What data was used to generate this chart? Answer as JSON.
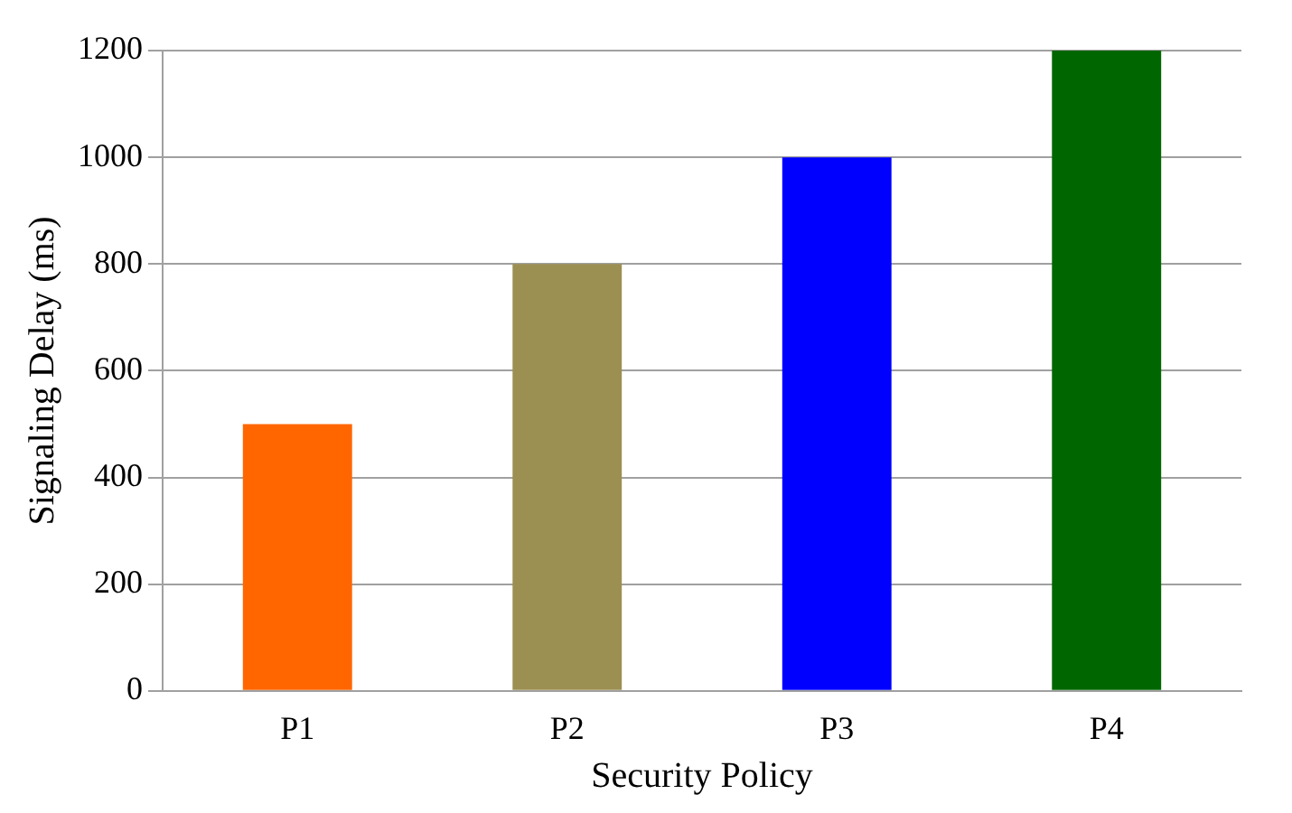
{
  "chart_data": {
    "type": "bar",
    "xlabel": "Security Policy",
    "ylabel": "Signaling Delay (ms)",
    "categories": [
      "P1",
      "P2",
      "P3",
      "P4"
    ],
    "values": [
      500,
      800,
      1000,
      1200
    ],
    "colors": [
      "#ff6600",
      "#9c8f52",
      "#0000ff",
      "#006600"
    ],
    "ylim": [
      0,
      1200
    ],
    "yticks": [
      0,
      200,
      400,
      600,
      800,
      1000,
      1200
    ],
    "grid": "y",
    "legend": false
  }
}
